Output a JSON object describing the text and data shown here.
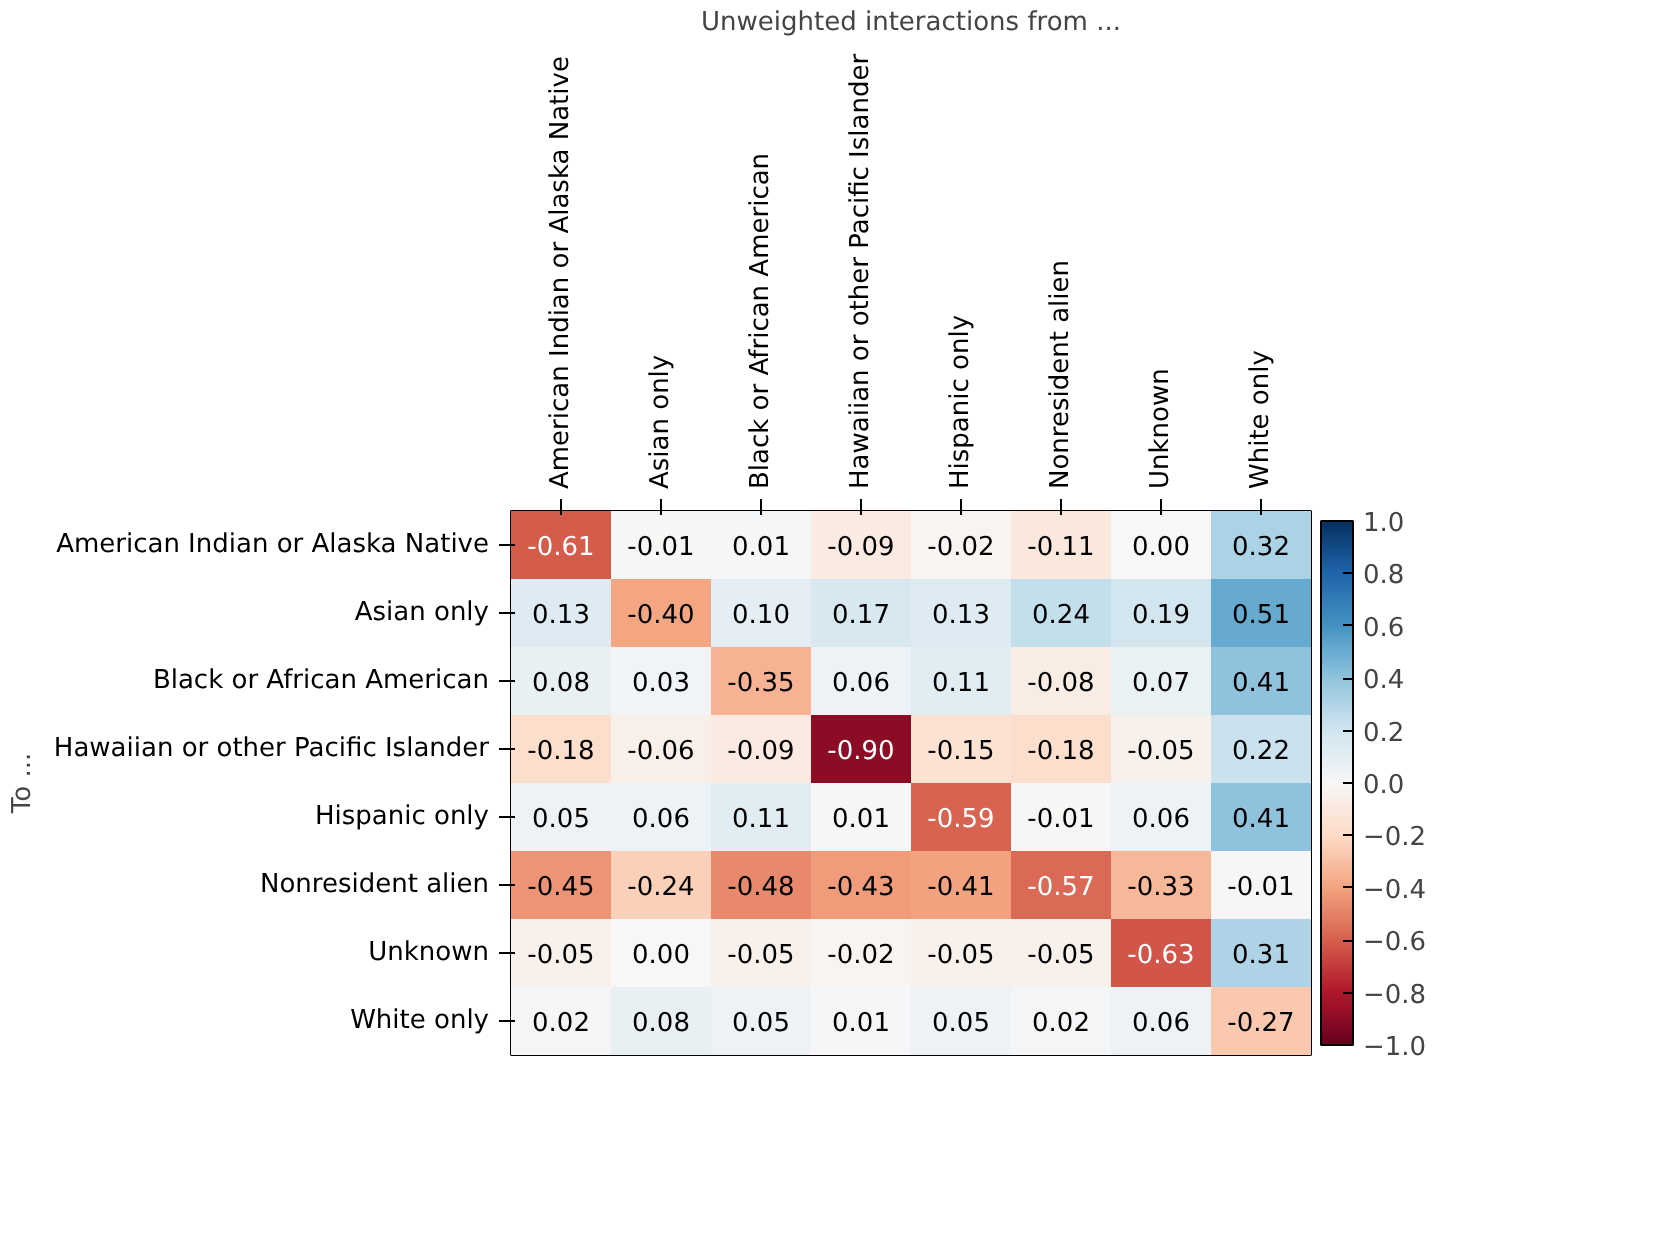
{
  "chart_data": {
    "type": "heatmap",
    "xlabel": "Unweighted interactions from ...",
    "ylabel": "To ...",
    "categories": [
      "American Indian or Alaska Native",
      "Asian only",
      "Black or African American",
      "Hawaiian or other Pacific Islander",
      "Hispanic only",
      "Nonresident alien",
      "Unknown",
      "White only"
    ],
    "y_categories": [
      "American Indian or Alaska Native",
      "Asian only",
      "Black or African American",
      "Hawaiian or other Pacific Islander",
      "Hispanic only",
      "Nonresident alien",
      "Unknown",
      "White only"
    ],
    "cells": [
      [
        -0.61,
        -0.01,
        0.01,
        -0.09,
        -0.02,
        -0.11,
        0.0,
        0.32
      ],
      [
        0.13,
        -0.4,
        0.1,
        0.17,
        0.13,
        0.24,
        0.19,
        0.51
      ],
      [
        0.08,
        0.03,
        -0.35,
        0.06,
        0.11,
        -0.08,
        0.07,
        0.41
      ],
      [
        -0.18,
        -0.06,
        -0.09,
        -0.9,
        -0.15,
        -0.18,
        -0.05,
        0.22
      ],
      [
        0.05,
        0.06,
        0.11,
        0.01,
        -0.59,
        -0.01,
        0.06,
        0.41
      ],
      [
        -0.45,
        -0.24,
        -0.48,
        -0.43,
        -0.41,
        -0.57,
        -0.33,
        -0.01
      ],
      [
        -0.05,
        0.0,
        -0.05,
        -0.02,
        -0.05,
        -0.05,
        -0.63,
        0.31
      ],
      [
        0.02,
        0.08,
        0.05,
        0.01,
        0.05,
        0.02,
        0.06,
        -0.27
      ]
    ],
    "cell_labels": [
      [
        "-0.61",
        "-0.01",
        "0.01",
        "-0.09",
        "-0.02",
        "-0.11",
        "0.00",
        "0.32"
      ],
      [
        "0.13",
        "-0.40",
        "0.10",
        "0.17",
        "0.13",
        "0.24",
        "0.19",
        "0.51"
      ],
      [
        "0.08",
        "0.03",
        "-0.35",
        "0.06",
        "0.11",
        "-0.08",
        "0.07",
        "0.41"
      ],
      [
        "-0.18",
        "-0.06",
        "-0.09",
        "-0.90",
        "-0.15",
        "-0.18",
        "-0.05",
        "0.22"
      ],
      [
        "0.05",
        "0.06",
        "0.11",
        "0.01",
        "-0.59",
        "-0.01",
        "0.06",
        "0.41"
      ],
      [
        "-0.45",
        "-0.24",
        "-0.48",
        "-0.43",
        "-0.41",
        "-0.57",
        "-0.33",
        "-0.01"
      ],
      [
        "-0.05",
        "0.00",
        "-0.05",
        "-0.02",
        "-0.05",
        "-0.05",
        "-0.63",
        "0.31"
      ],
      [
        "0.02",
        "0.08",
        "0.05",
        "0.01",
        "0.05",
        "0.02",
        "0.06",
        "-0.27"
      ]
    ],
    "clim": [
      -1.0,
      1.0
    ],
    "cticks": [
      {
        "value": -1.0,
        "label": "−1.0"
      },
      {
        "value": -0.8,
        "label": "−0.8"
      },
      {
        "value": -0.6,
        "label": "−0.6"
      },
      {
        "value": -0.4,
        "label": "−0.4"
      },
      {
        "value": -0.2,
        "label": "−0.2"
      },
      {
        "value": 0.0,
        "label": "0.0"
      },
      {
        "value": 0.2,
        "label": "0.2"
      },
      {
        "value": 0.4,
        "label": "0.4"
      },
      {
        "value": 0.6,
        "label": "0.6"
      },
      {
        "value": 0.8,
        "label": "0.8"
      },
      {
        "value": 1.0,
        "label": "1.0"
      }
    ]
  }
}
